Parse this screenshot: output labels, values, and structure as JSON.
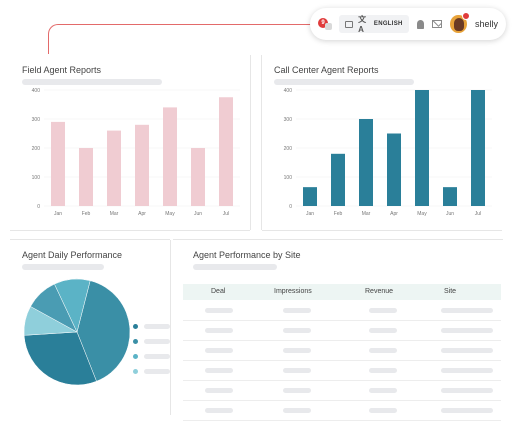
{
  "topbar": {
    "notification_count": "9",
    "language_label": "ENGLISH",
    "username": "shelly",
    "icons": [
      "notification-icon",
      "keyboard-icon",
      "translate-icon",
      "bell-icon",
      "mail-icon",
      "avatar"
    ]
  },
  "colors": {
    "accent_line": "#e36a6a",
    "field_bars": "#f0ccd2",
    "call_center_bars": "#2a7f99",
    "pie_slices": [
      "#3a8fa6",
      "#2a7f99",
      "#8fcfdb",
      "#4a9cb3",
      "#5bb3c6"
    ]
  },
  "field_chart": {
    "title": "Field Agent Reports"
  },
  "call_chart": {
    "title": "Call Center Agent Reports"
  },
  "pie_chart": {
    "title": "Agent Daily Performance"
  },
  "table": {
    "title": "Agent Performance by Site",
    "columns": [
      "Deal",
      "Impressions",
      "Revenue",
      "Site"
    ]
  },
  "chart_data": [
    {
      "type": "bar",
      "title": "Field Agent Reports",
      "categories": [
        "Jan",
        "Feb",
        "Mar",
        "Apr",
        "May",
        "Jun",
        "Jul"
      ],
      "values": [
        290,
        200,
        260,
        280,
        340,
        200,
        375
      ],
      "ylim": [
        0,
        400
      ],
      "yticks": [
        0,
        100,
        200,
        300,
        400
      ],
      "grid": true
    },
    {
      "type": "bar",
      "title": "Call Center Agent Reports",
      "categories": [
        "Jan",
        "Feb",
        "Mar",
        "Apr",
        "May",
        "Jun",
        "Jul"
      ],
      "values": [
        65,
        180,
        300,
        250,
        400,
        65,
        400
      ],
      "ylim": [
        0,
        400
      ],
      "yticks": [
        0,
        100,
        200,
        300,
        400
      ],
      "grid": true
    },
    {
      "type": "pie",
      "title": "Agent Daily Performance",
      "values": [
        40,
        30,
        9,
        10,
        11
      ],
      "legend": "right"
    }
  ]
}
